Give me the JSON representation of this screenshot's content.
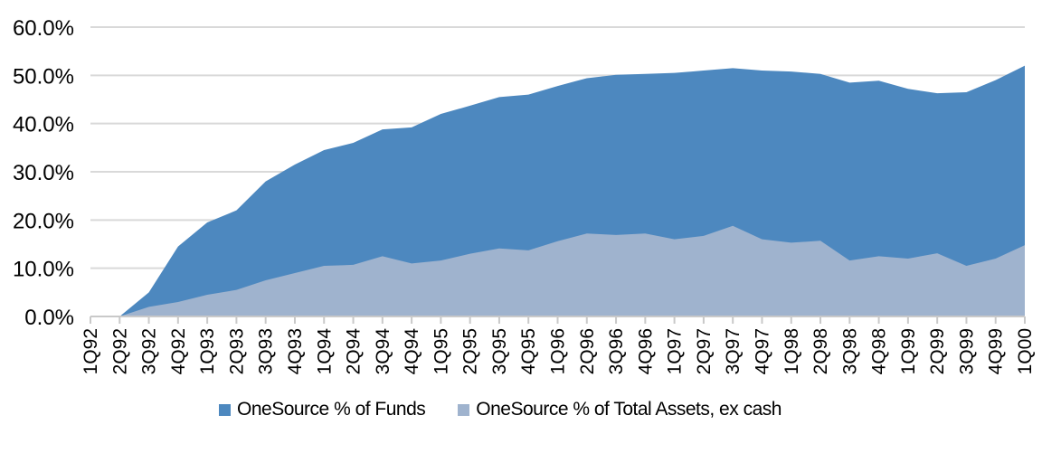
{
  "chart_data": {
    "type": "area",
    "title": "",
    "xlabel": "",
    "ylabel": "",
    "categories": [
      "1Q92",
      "2Q92",
      "3Q92",
      "4Q92",
      "1Q93",
      "2Q93",
      "3Q93",
      "4Q93",
      "1Q94",
      "2Q94",
      "3Q94",
      "4Q94",
      "1Q95",
      "2Q95",
      "3Q95",
      "4Q95",
      "1Q96",
      "2Q96",
      "3Q96",
      "4Q96",
      "1Q97",
      "2Q97",
      "3Q97",
      "4Q97",
      "1Q98",
      "2Q98",
      "3Q98",
      "4Q98",
      "1Q99",
      "2Q99",
      "3Q99",
      "4Q99",
      "1Q00"
    ],
    "series": [
      {
        "name": "OneSource % of Funds",
        "color": "#4d88bf",
        "values": [
          0,
          0,
          5,
          14.5,
          19.5,
          22,
          28,
          31.5,
          34.5,
          36,
          38.8,
          39.2,
          42,
          43.7,
          45.5,
          46,
          47.8,
          49.4,
          50.1,
          50.3,
          50.5,
          51,
          51.5,
          51,
          50.8,
          50.3,
          48.5,
          48.9,
          47.2,
          46.3,
          46.5,
          49,
          52
        ]
      },
      {
        "name": "OneSource % of Total Assets, ex cash",
        "color": "#9fb3ce",
        "values": [
          0,
          0,
          2,
          3,
          4.5,
          5.5,
          7.5,
          9,
          10.5,
          10.7,
          12.5,
          11,
          11.6,
          13,
          14.1,
          13.7,
          15.6,
          17.2,
          16.9,
          17.2,
          16,
          16.7,
          18.8,
          16,
          15.3,
          15.7,
          11.6,
          12.5,
          12,
          13.1,
          10.5,
          12,
          14.8
        ]
      }
    ],
    "ylim": [
      0,
      60
    ],
    "ytick_step": 10,
    "ytick_labels": [
      "0.0%",
      "10.0%",
      "20.0%",
      "30.0%",
      "40.0%",
      "50.0%",
      "60.0%"
    ],
    "grid": "horizontal",
    "legend_position": "bottom",
    "stacked": false
  },
  "colors": {
    "gridline": "#d9d9d9",
    "axis_line": "#c9c9c9",
    "tick": "#c9c9c9",
    "text": "#000000",
    "background": "#ffffff"
  }
}
